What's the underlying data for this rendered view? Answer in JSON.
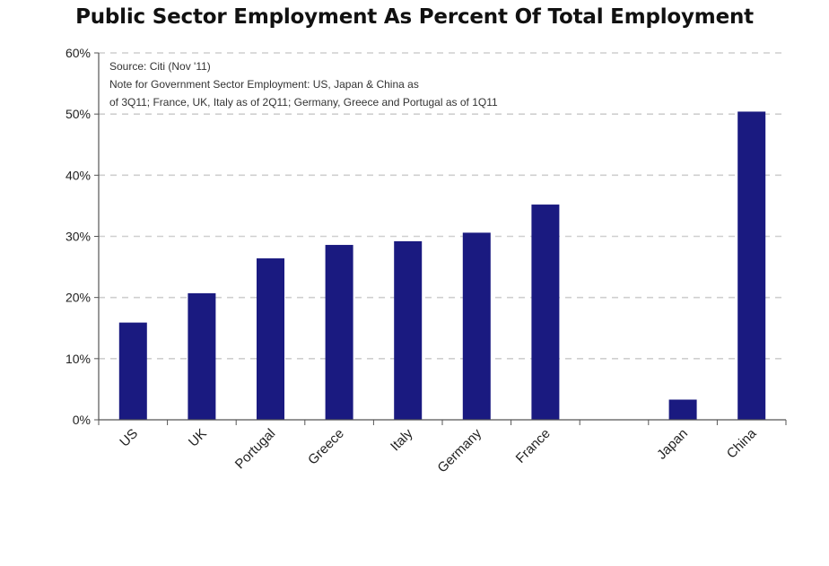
{
  "chart_data": {
    "type": "bar",
    "title": "Public Sector Employment As Percent Of Total Employment",
    "categories": [
      "US",
      "UK",
      "Portugal",
      "Greece",
      "Italy",
      "Germany",
      "France",
      "",
      "Japan",
      "China"
    ],
    "values": [
      15.9,
      20.7,
      26.4,
      28.6,
      29.2,
      30.6,
      35.2,
      null,
      3.3,
      50.4
    ],
    "ylim": [
      0,
      60
    ],
    "yticks": [
      0,
      10,
      20,
      30,
      40,
      50,
      60
    ],
    "ytick_labels": [
      "0%",
      "10%",
      "20%",
      "30%",
      "40%",
      "50%",
      "60%"
    ],
    "xlabel": "",
    "ylabel": "",
    "grid": true,
    "bar_color": "#1a1a80",
    "annotations": [
      "Source: Citi (Nov '11)",
      "Note for Government Sector Employment: US, Japan & China as",
      "of 3Q11; France, UK, Italy as of 2Q11; Germany, Greece and Portugal as of 1Q11"
    ]
  }
}
